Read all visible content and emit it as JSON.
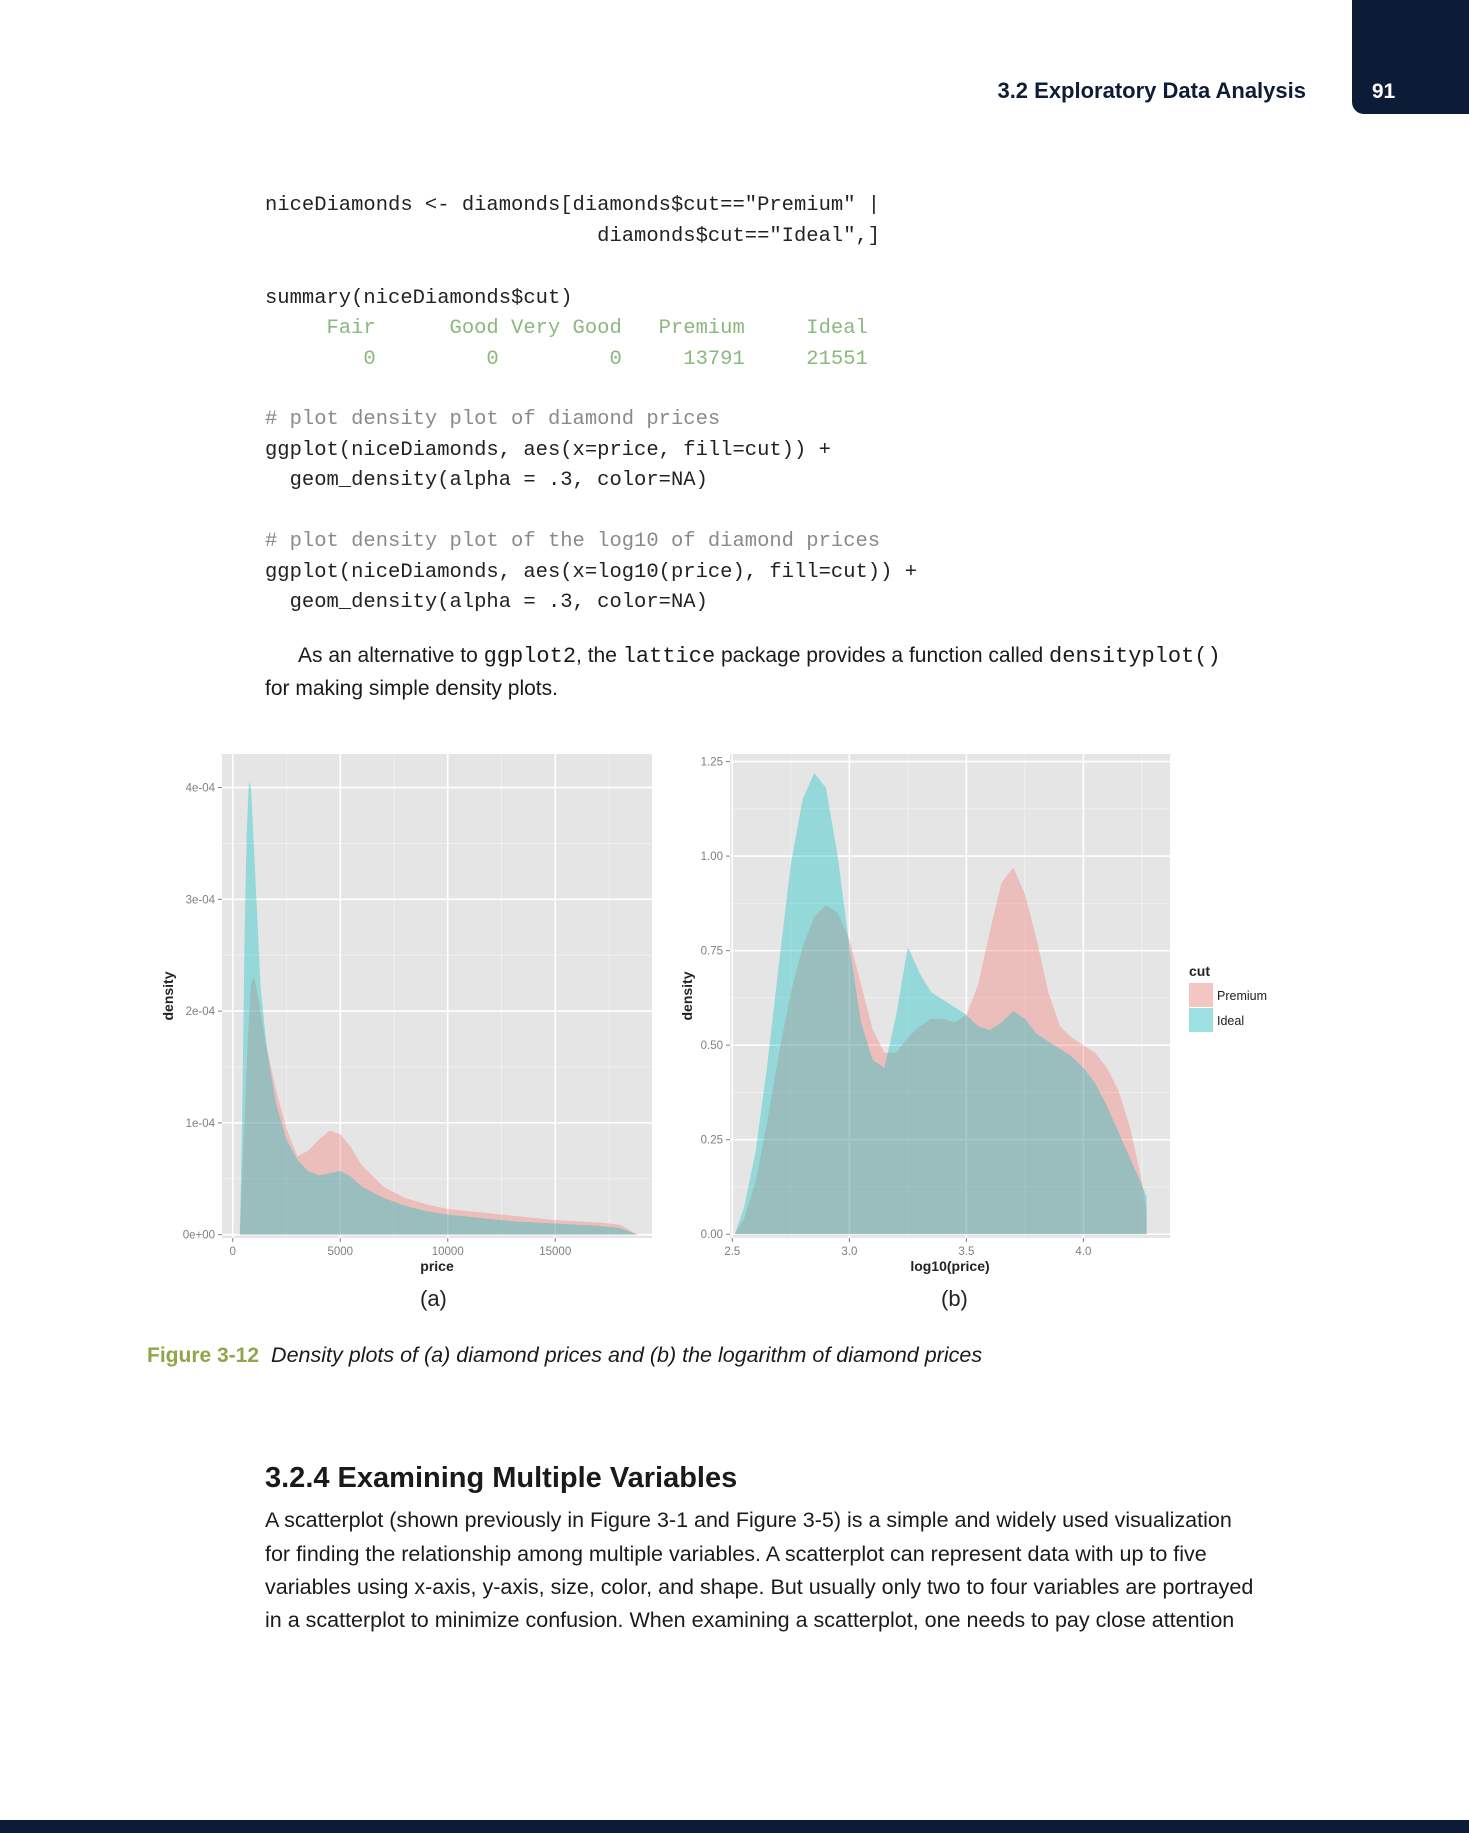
{
  "header": {
    "section_title": "3.2 Exploratory Data Analysis",
    "page_number": "91"
  },
  "code_block_1": {
    "lines": [
      "niceDiamonds <- diamonds[diamonds$cut==\"Premium\" |",
      "                           diamonds$cut==\"Ideal\",]",
      "summary(niceDiamonds$cut)"
    ],
    "output": [
      "     Fair      Good Very Good   Premium     Ideal",
      "        0         0         0     13791     21551"
    ]
  },
  "code_block_2": {
    "comment": "# plot density plot of diamond prices",
    "lines": [
      "ggplot(niceDiamonds, aes(x=price, fill=cut)) +",
      "  geom_density(alpha = .3, color=NA)"
    ]
  },
  "code_block_3": {
    "comment": "# plot density plot of the log10 of diamond prices",
    "lines": [
      "ggplot(niceDiamonds, aes(x=log10(price), fill=cut)) +",
      "  geom_density(alpha = .3, color=NA)"
    ]
  },
  "paragraph_1": {
    "part1": "As an alternative to ",
    "code1": "ggplot2",
    "part2": ", the ",
    "code2": "lattice",
    "part3": " package provides a function called ",
    "code3": "densityplot()",
    "line2": "for making simple density plots."
  },
  "figure": {
    "label": "Figure 3-12",
    "caption": "Density plots of (a) diamond prices and (b) the logarithm of diamond prices",
    "panel_a_label": "(a)",
    "panel_b_label": "(b)",
    "colors": {
      "premium": "#f8766d",
      "ideal": "#00bfc4",
      "panel_bg": "#e5e5e5",
      "grid": "#ffffff"
    }
  },
  "chart_data": [
    {
      "type": "area",
      "xlabel": "price",
      "ylabel": "density",
      "xlim": [
        -500,
        19500
      ],
      "ylim": [
        -3e-06,
        0.00043
      ],
      "x_ticks": [
        0,
        5000,
        10000,
        15000
      ],
      "x_tick_labels": [
        "0",
        "5000",
        "10000",
        "15000"
      ],
      "y_ticks": [
        0,
        0.0001,
        0.0002,
        0.0003,
        0.0004
      ],
      "y_tick_labels": [
        "0e+00",
        "1e-04",
        "2e-04",
        "3e-04",
        "4e-04"
      ],
      "series": [
        {
          "name": "Premium",
          "x": [
            326,
            500,
            700,
            850,
            1000,
            1200,
            1500,
            2000,
            2500,
            3000,
            3500,
            4000,
            4500,
            5000,
            5500,
            6000,
            7000,
            8000,
            9000,
            10000,
            11000,
            12000,
            13000,
            14000,
            15000,
            16000,
            17000,
            18000,
            18823
          ],
          "y": [
            0,
            8e-05,
            0.000175,
            0.000225,
            0.00023,
            0.00021,
            0.000175,
            0.00013,
            9.5e-05,
            7e-05,
            7.5e-05,
            8.5e-05,
            9.3e-05,
            9e-05,
            7.8e-05,
            6.2e-05,
            4.3e-05,
            3.3e-05,
            2.7e-05,
            2.3e-05,
            2.1e-05,
            1.9e-05,
            1.7e-05,
            1.5e-05,
            1.3e-05,
            1.2e-05,
            1.1e-05,
            9e-06,
            0
          ]
        },
        {
          "name": "Ideal",
          "x": [
            326,
            450,
            550,
            650,
            750,
            850,
            950,
            1100,
            1300,
            1600,
            2000,
            2500,
            3000,
            3500,
            4000,
            4500,
            5000,
            5500,
            6000,
            7000,
            8000,
            9000,
            10000,
            11000,
            12000,
            13000,
            14000,
            15000,
            16000,
            17000,
            18000,
            18806
          ],
          "y": [
            0,
            0.00012,
            0.00027,
            0.00036,
            0.000405,
            0.0004,
            0.00036,
            0.0003,
            0.00022,
            0.000165,
            0.000118,
            8.5e-05,
            6.7e-05,
            5.7e-05,
            5.3e-05,
            5.5e-05,
            5.7e-05,
            5.2e-05,
            4.3e-05,
            3.3e-05,
            2.6e-05,
            2.1e-05,
            1.8e-05,
            1.6e-05,
            1.4e-05,
            1.2e-05,
            1.1e-05,
            1e-05,
            9e-06,
            8e-06,
            6e-06,
            0
          ]
        }
      ]
    },
    {
      "type": "area",
      "xlabel": "log10(price)",
      "ylabel": "density",
      "xlim": [
        2.49,
        4.37
      ],
      "ylim": [
        -0.01,
        1.27
      ],
      "x_ticks": [
        2.5,
        3.0,
        3.5,
        4.0
      ],
      "x_tick_labels": [
        "2.5",
        "3.0",
        "3.5",
        "4.0"
      ],
      "y_ticks": [
        0,
        0.25,
        0.5,
        0.75,
        1.0,
        1.25
      ],
      "y_tick_labels": [
        "0.00",
        "0.25",
        "0.50",
        "0.75",
        "1.00",
        "1.25"
      ],
      "legend": {
        "title": "cut",
        "placement": "right",
        "entries": [
          "Premium",
          "Ideal"
        ]
      },
      "series": [
        {
          "name": "Premium",
          "x": [
            2.51,
            2.55,
            2.6,
            2.65,
            2.7,
            2.75,
            2.8,
            2.85,
            2.9,
            2.95,
            3.0,
            3.05,
            3.1,
            3.15,
            3.2,
            3.25,
            3.3,
            3.35,
            3.4,
            3.45,
            3.5,
            3.55,
            3.6,
            3.65,
            3.7,
            3.75,
            3.8,
            3.85,
            3.9,
            3.95,
            4.0,
            4.05,
            4.1,
            4.15,
            4.2,
            4.25,
            4.27
          ],
          "y": [
            0,
            0.04,
            0.14,
            0.3,
            0.48,
            0.64,
            0.76,
            0.84,
            0.87,
            0.85,
            0.78,
            0.66,
            0.54,
            0.48,
            0.48,
            0.52,
            0.55,
            0.57,
            0.57,
            0.56,
            0.58,
            0.66,
            0.8,
            0.93,
            0.97,
            0.9,
            0.78,
            0.64,
            0.55,
            0.52,
            0.5,
            0.48,
            0.44,
            0.38,
            0.28,
            0.14,
            0.06
          ]
        },
        {
          "name": "Ideal",
          "x": [
            2.51,
            2.55,
            2.6,
            2.65,
            2.7,
            2.75,
            2.8,
            2.85,
            2.9,
            2.95,
            3.0,
            3.05,
            3.1,
            3.15,
            3.2,
            3.25,
            3.3,
            3.35,
            3.4,
            3.45,
            3.5,
            3.55,
            3.6,
            3.65,
            3.7,
            3.75,
            3.8,
            3.85,
            3.9,
            3.95,
            4.0,
            4.05,
            4.1,
            4.15,
            4.2,
            4.25,
            4.27
          ],
          "y": [
            0,
            0.07,
            0.22,
            0.45,
            0.72,
            0.98,
            1.15,
            1.22,
            1.18,
            1.0,
            0.76,
            0.56,
            0.46,
            0.44,
            0.58,
            0.76,
            0.69,
            0.64,
            0.62,
            0.6,
            0.58,
            0.55,
            0.54,
            0.56,
            0.59,
            0.57,
            0.53,
            0.51,
            0.49,
            0.47,
            0.44,
            0.4,
            0.34,
            0.27,
            0.2,
            0.13,
            0.1
          ]
        }
      ]
    }
  ],
  "section": {
    "heading": "3.2.4 Examining Multiple Variables",
    "lines": [
      "A scatterplot (shown previously in Figure 3-1 and Figure 3-5) is a simple and widely used visualization",
      "for finding the relationship among multiple variables. A scatterplot can represent data with up to five",
      "variables using x-axis, y-axis, size, color, and shape. But usually only two to four variables are portrayed",
      "in a scatterplot to minimize confusion. When examining a scatterplot, one needs to pay close attention"
    ]
  }
}
